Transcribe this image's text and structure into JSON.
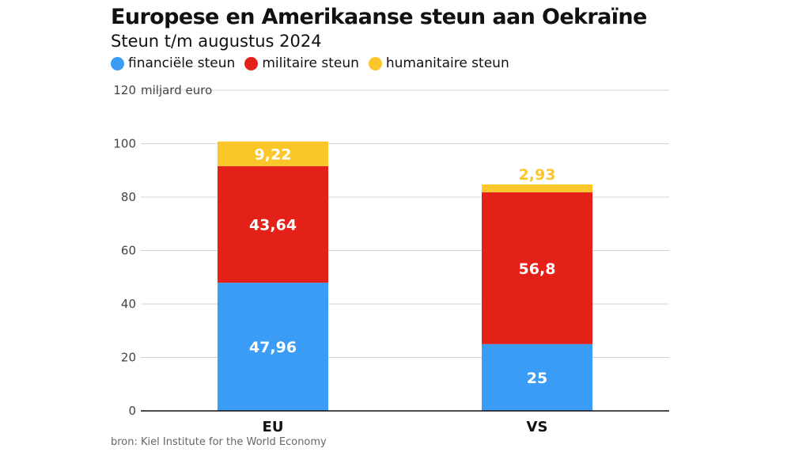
{
  "title": "Europese en Amerikaanse steun aan Oekraïne",
  "subtitle": "Steun t/m augustus 2024",
  "source": "bron: Kiel Institute for the World Economy",
  "legend": [
    {
      "label": "financiële steun",
      "color": "#3b9cf6"
    },
    {
      "label": "militaire steun",
      "color": "#e32119"
    },
    {
      "label": "humanitaire steun",
      "color": "#fbc629"
    }
  ],
  "chart_data": {
    "type": "bar",
    "stacked": true,
    "categories": [
      "EU",
      "VS"
    ],
    "series": [
      {
        "name": "financiële steun",
        "values": [
          47.96,
          25
        ],
        "labels": [
          "47,96",
          "25"
        ],
        "color": "#3b9cf6"
      },
      {
        "name": "militaire steun",
        "values": [
          43.64,
          56.8
        ],
        "labels": [
          "43,64",
          "56,8"
        ],
        "color": "#e32119"
      },
      {
        "name": "humanitaire steun",
        "values": [
          9.22,
          2.93
        ],
        "labels": [
          "9,22",
          "2,93"
        ],
        "color": "#fbc629"
      }
    ],
    "ylabel": "miljard euro",
    "yticks": [
      "0",
      "20",
      "40",
      "60",
      "80",
      "100",
      "120"
    ],
    "ylim": [
      0,
      120
    ],
    "grid": true,
    "legend_position": "top-left"
  }
}
